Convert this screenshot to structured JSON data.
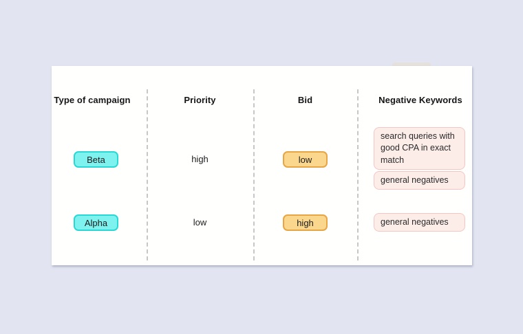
{
  "table": {
    "columns": [
      {
        "header": "Type of campaign"
      },
      {
        "header": "Priority"
      },
      {
        "header": "Bid"
      },
      {
        "header": "Negative Keywords"
      }
    ],
    "rows": [
      {
        "campaign": "Beta",
        "priority": "high",
        "bid": "low",
        "negative_keywords": [
          "search queries with good CPA in exact match",
          "general negatives"
        ]
      },
      {
        "campaign": "Alpha",
        "priority": "low",
        "bid": "high",
        "negative_keywords": [
          "general negatives"
        ]
      }
    ]
  },
  "colors": {
    "background": "#e2e5f1",
    "card": "#fffffe",
    "campaign_pill_bg": "#7ef2ee",
    "campaign_pill_border": "#29d8d5",
    "bid_pill_bg": "#fbd68d",
    "bid_pill_border": "#e7a646",
    "keyword_box_bg": "#fcede9",
    "keyword_box_border": "#f4c5c3",
    "divider": "#c7c7c7",
    "text": "#1c1c1c"
  }
}
